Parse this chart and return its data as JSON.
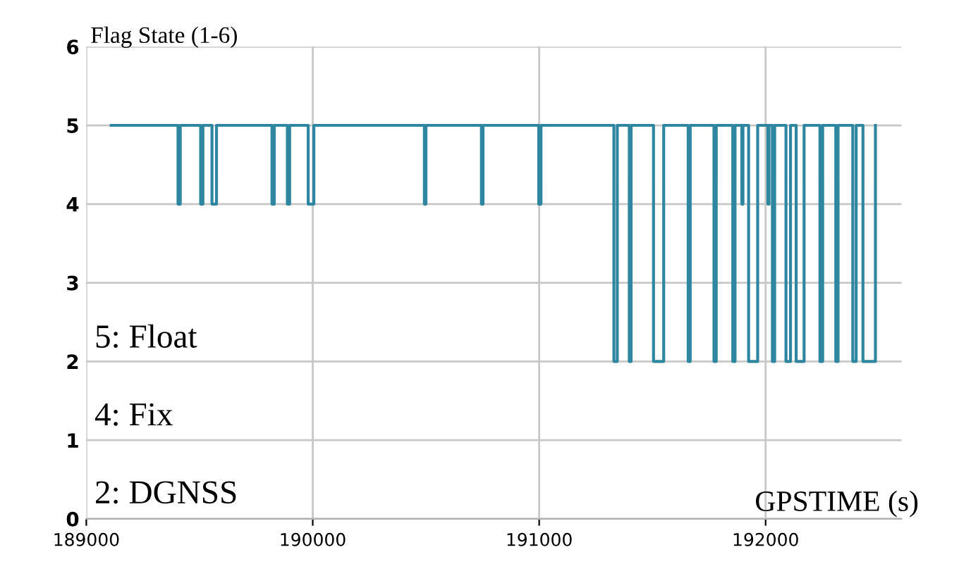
{
  "chart_data": {
    "type": "step",
    "xlabel": "GPSTIME (s)",
    "ylabel": "Flag State (1-6)",
    "annotations": [
      "5: Float",
      "4: Fix",
      "2: DGNSS"
    ],
    "series": [
      {
        "color": "#2e86a0",
        "x": [
          189110,
          189405,
          189415,
          189505,
          189515,
          189555,
          189575,
          189820,
          189830,
          189888,
          189898,
          189980,
          190005,
          190493,
          190500,
          190745,
          190752,
          190998,
          191008,
          191330,
          191345,
          191398,
          191406,
          191505,
          191550,
          191658,
          191667,
          191772,
          191782,
          191855,
          191865,
          191895,
          191900,
          191925,
          191965,
          192010,
          192015,
          192030,
          192040,
          192090,
          192110,
          192135,
          192170,
          192240,
          192252,
          192310,
          192320,
          192385,
          192400,
          192430,
          192485
        ],
        "values": [
          5,
          4,
          5,
          4,
          5,
          4,
          5,
          4,
          5,
          4,
          5,
          4,
          5,
          4,
          5,
          4,
          5,
          4,
          5,
          2,
          5,
          2,
          5,
          2,
          5,
          2,
          5,
          2,
          5,
          2,
          5,
          4,
          5,
          2,
          5,
          4,
          5,
          2,
          5,
          2,
          5,
          2,
          5,
          2,
          5,
          2,
          5,
          2,
          5,
          2,
          5
        ]
      }
    ],
    "xlim": [
      189000,
      192600
    ],
    "xticks": [
      189000,
      190000,
      191000,
      192000
    ],
    "ylim": [
      0,
      6
    ],
    "yticks": [
      0,
      1,
      2,
      3,
      4,
      5,
      6
    ],
    "grid": true,
    "legend": false
  }
}
